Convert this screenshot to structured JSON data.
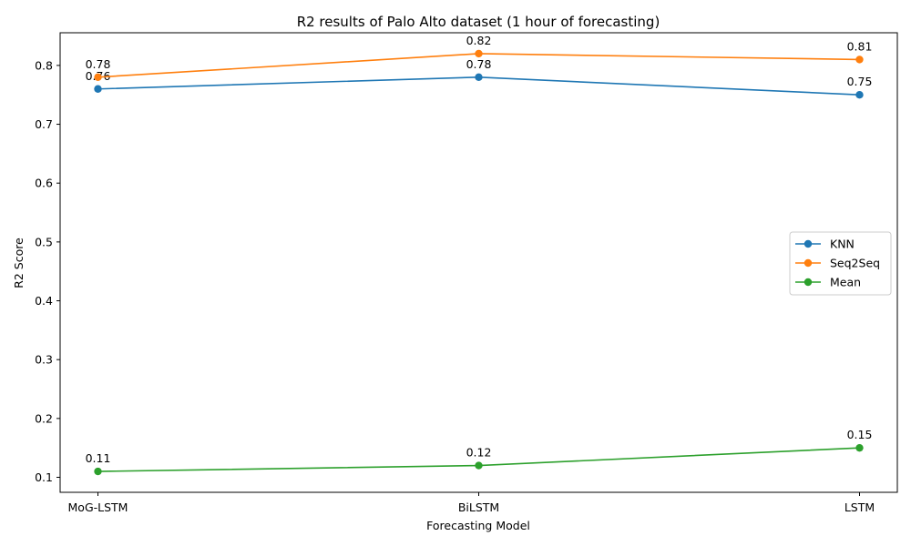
{
  "chart_data": {
    "type": "line",
    "title": "R2 results of Palo Alto dataset (1 hour of forecasting)",
    "xlabel": "Forecasting Model",
    "ylabel": "R2 Score",
    "categories": [
      "MoG-LSTM",
      "BiLSTM",
      "LSTM"
    ],
    "ylim": [
      0.0745,
      0.8555
    ],
    "yticks": [
      0.1,
      0.2,
      0.3,
      0.4,
      0.5,
      0.6,
      0.7,
      0.8
    ],
    "ytick_labels": [
      "0.1",
      "0.2",
      "0.3",
      "0.4",
      "0.5",
      "0.6",
      "0.7",
      "0.8"
    ],
    "grid": false,
    "legend_position": "center-right",
    "series": [
      {
        "name": "KNN",
        "color": "#1f77b4",
        "values": [
          0.76,
          0.78,
          0.75
        ],
        "labels": [
          "0.76",
          "0.78",
          "0.75"
        ]
      },
      {
        "name": "Seq2Seq",
        "color": "#ff7f0e",
        "values": [
          0.78,
          0.82,
          0.81
        ],
        "labels": [
          "0.78",
          "0.82",
          "0.81"
        ]
      },
      {
        "name": "Mean",
        "color": "#2ca02c",
        "values": [
          0.11,
          0.12,
          0.15
        ],
        "labels": [
          "0.11",
          "0.12",
          "0.15"
        ]
      }
    ]
  }
}
